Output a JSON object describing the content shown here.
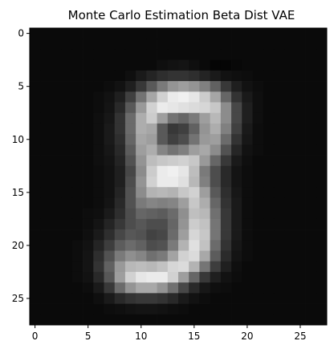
{
  "chart_data": {
    "type": "heatmap",
    "title": "Monte Carlo Estimation Beta Dist VAE",
    "xlabel": "",
    "ylabel": "",
    "colormap": "gray",
    "xlim": [
      -0.5,
      27.5
    ],
    "ylim": [
      27.5,
      -0.5
    ],
    "x_ticks": [
      0,
      5,
      10,
      15,
      20,
      25
    ],
    "y_ticks": [
      0,
      5,
      10,
      15,
      20,
      25
    ],
    "x_tick_labels": [
      "0",
      "5",
      "10",
      "15",
      "20",
      "25"
    ],
    "y_tick_labels": [
      "0",
      "5",
      "10",
      "15",
      "20",
      "25"
    ],
    "grid": false,
    "rows": 28,
    "cols": 28,
    "values": [
      [
        0.04,
        0.04,
        0.04,
        0.04,
        0.04,
        0.04,
        0.04,
        0.04,
        0.04,
        0.04,
        0.04,
        0.04,
        0.04,
        0.04,
        0.04,
        0.04,
        0.04,
        0.04,
        0.04,
        0.04,
        0.04,
        0.04,
        0.04,
        0.04,
        0.04,
        0.04,
        0.04,
        0.04
      ],
      [
        0.04,
        0.04,
        0.04,
        0.04,
        0.04,
        0.04,
        0.04,
        0.04,
        0.04,
        0.04,
        0.04,
        0.04,
        0.04,
        0.04,
        0.04,
        0.04,
        0.04,
        0.04,
        0.04,
        0.04,
        0.04,
        0.04,
        0.04,
        0.04,
        0.04,
        0.04,
        0.04,
        0.04
      ],
      [
        0.04,
        0.04,
        0.04,
        0.04,
        0.04,
        0.04,
        0.04,
        0.04,
        0.04,
        0.04,
        0.04,
        0.04,
        0.04,
        0.04,
        0.04,
        0.04,
        0.04,
        0.04,
        0.04,
        0.04,
        0.04,
        0.04,
        0.04,
        0.04,
        0.04,
        0.04,
        0.04,
        0.04
      ],
      [
        0.04,
        0.04,
        0.04,
        0.04,
        0.04,
        0.04,
        0.04,
        0.04,
        0.04,
        0.04,
        0.04,
        0.04,
        0.06,
        0.07,
        0.08,
        0.06,
        0.04,
        0.02,
        0.02,
        0.03,
        0.04,
        0.04,
        0.04,
        0.04,
        0.04,
        0.04,
        0.04,
        0.04
      ],
      [
        0.04,
        0.04,
        0.04,
        0.04,
        0.04,
        0.04,
        0.04,
        0.04,
        0.04,
        0.06,
        0.1,
        0.14,
        0.18,
        0.2,
        0.2,
        0.18,
        0.14,
        0.1,
        0.07,
        0.06,
        0.05,
        0.04,
        0.04,
        0.04,
        0.04,
        0.04,
        0.04,
        0.04
      ],
      [
        0.04,
        0.04,
        0.04,
        0.04,
        0.04,
        0.04,
        0.04,
        0.05,
        0.07,
        0.12,
        0.22,
        0.35,
        0.48,
        0.58,
        0.62,
        0.58,
        0.5,
        0.38,
        0.22,
        0.12,
        0.07,
        0.05,
        0.04,
        0.04,
        0.04,
        0.04,
        0.04,
        0.04
      ],
      [
        0.04,
        0.04,
        0.04,
        0.04,
        0.04,
        0.04,
        0.05,
        0.07,
        0.12,
        0.25,
        0.45,
        0.65,
        0.82,
        0.92,
        0.94,
        0.9,
        0.8,
        0.65,
        0.4,
        0.2,
        0.1,
        0.06,
        0.04,
        0.04,
        0.04,
        0.04,
        0.04,
        0.04
      ],
      [
        0.04,
        0.04,
        0.04,
        0.04,
        0.04,
        0.04,
        0.05,
        0.08,
        0.16,
        0.35,
        0.6,
        0.82,
        0.92,
        0.9,
        0.88,
        0.86,
        0.84,
        0.78,
        0.55,
        0.28,
        0.12,
        0.06,
        0.04,
        0.04,
        0.04,
        0.04,
        0.04,
        0.04
      ],
      [
        0.04,
        0.04,
        0.04,
        0.04,
        0.04,
        0.04,
        0.06,
        0.09,
        0.2,
        0.42,
        0.68,
        0.8,
        0.62,
        0.45,
        0.4,
        0.48,
        0.62,
        0.72,
        0.55,
        0.28,
        0.12,
        0.06,
        0.04,
        0.04,
        0.04,
        0.04,
        0.04,
        0.04
      ],
      [
        0.04,
        0.04,
        0.04,
        0.04,
        0.04,
        0.04,
        0.06,
        0.1,
        0.2,
        0.42,
        0.68,
        0.65,
        0.35,
        0.22,
        0.25,
        0.38,
        0.58,
        0.68,
        0.5,
        0.25,
        0.1,
        0.05,
        0.04,
        0.04,
        0.04,
        0.04,
        0.04,
        0.04
      ],
      [
        0.04,
        0.04,
        0.04,
        0.04,
        0.04,
        0.04,
        0.06,
        0.1,
        0.18,
        0.4,
        0.65,
        0.62,
        0.35,
        0.25,
        0.3,
        0.45,
        0.6,
        0.62,
        0.42,
        0.2,
        0.09,
        0.05,
        0.04,
        0.04,
        0.04,
        0.04,
        0.04,
        0.04
      ],
      [
        0.04,
        0.04,
        0.04,
        0.04,
        0.04,
        0.04,
        0.06,
        0.09,
        0.16,
        0.36,
        0.62,
        0.68,
        0.52,
        0.45,
        0.5,
        0.62,
        0.66,
        0.55,
        0.32,
        0.15,
        0.07,
        0.05,
        0.04,
        0.04,
        0.04,
        0.04,
        0.04,
        0.04
      ],
      [
        0.04,
        0.04,
        0.04,
        0.04,
        0.04,
        0.04,
        0.06,
        0.08,
        0.14,
        0.32,
        0.58,
        0.74,
        0.78,
        0.8,
        0.82,
        0.78,
        0.6,
        0.4,
        0.22,
        0.1,
        0.06,
        0.04,
        0.04,
        0.04,
        0.04,
        0.04,
        0.04,
        0.04
      ],
      [
        0.04,
        0.04,
        0.04,
        0.04,
        0.04,
        0.04,
        0.05,
        0.07,
        0.12,
        0.28,
        0.55,
        0.8,
        0.92,
        0.94,
        0.9,
        0.74,
        0.48,
        0.3,
        0.16,
        0.08,
        0.05,
        0.04,
        0.04,
        0.04,
        0.04,
        0.04,
        0.04,
        0.04
      ],
      [
        0.04,
        0.04,
        0.04,
        0.04,
        0.04,
        0.04,
        0.05,
        0.07,
        0.12,
        0.3,
        0.58,
        0.82,
        0.92,
        0.92,
        0.88,
        0.72,
        0.5,
        0.3,
        0.16,
        0.08,
        0.05,
        0.04,
        0.04,
        0.04,
        0.04,
        0.04,
        0.04,
        0.04
      ],
      [
        0.04,
        0.04,
        0.04,
        0.04,
        0.04,
        0.04,
        0.05,
        0.07,
        0.14,
        0.32,
        0.55,
        0.7,
        0.72,
        0.7,
        0.78,
        0.82,
        0.62,
        0.35,
        0.18,
        0.09,
        0.05,
        0.04,
        0.04,
        0.04,
        0.04,
        0.04,
        0.04,
        0.04
      ],
      [
        0.04,
        0.04,
        0.04,
        0.04,
        0.04,
        0.04,
        0.05,
        0.08,
        0.16,
        0.32,
        0.48,
        0.52,
        0.5,
        0.52,
        0.62,
        0.78,
        0.68,
        0.4,
        0.2,
        0.1,
        0.05,
        0.04,
        0.04,
        0.04,
        0.04,
        0.04,
        0.04,
        0.04
      ],
      [
        0.04,
        0.04,
        0.04,
        0.04,
        0.04,
        0.05,
        0.06,
        0.1,
        0.18,
        0.3,
        0.4,
        0.38,
        0.36,
        0.42,
        0.56,
        0.75,
        0.72,
        0.44,
        0.22,
        0.1,
        0.05,
        0.04,
        0.04,
        0.04,
        0.04,
        0.04,
        0.04,
        0.04
      ],
      [
        0.04,
        0.04,
        0.04,
        0.04,
        0.04,
        0.05,
        0.08,
        0.14,
        0.22,
        0.3,
        0.34,
        0.3,
        0.3,
        0.4,
        0.58,
        0.8,
        0.76,
        0.46,
        0.22,
        0.1,
        0.05,
        0.04,
        0.04,
        0.04,
        0.04,
        0.04,
        0.04,
        0.04
      ],
      [
        0.04,
        0.04,
        0.04,
        0.04,
        0.04,
        0.06,
        0.1,
        0.18,
        0.28,
        0.34,
        0.32,
        0.26,
        0.28,
        0.42,
        0.62,
        0.84,
        0.78,
        0.46,
        0.22,
        0.1,
        0.05,
        0.04,
        0.04,
        0.04,
        0.04,
        0.04,
        0.04,
        0.04
      ],
      [
        0.04,
        0.04,
        0.04,
        0.04,
        0.05,
        0.07,
        0.14,
        0.24,
        0.36,
        0.42,
        0.38,
        0.3,
        0.32,
        0.48,
        0.7,
        0.88,
        0.76,
        0.42,
        0.2,
        0.09,
        0.05,
        0.04,
        0.04,
        0.04,
        0.04,
        0.04,
        0.04,
        0.04
      ],
      [
        0.04,
        0.04,
        0.04,
        0.04,
        0.05,
        0.08,
        0.18,
        0.32,
        0.48,
        0.56,
        0.52,
        0.44,
        0.48,
        0.64,
        0.82,
        0.86,
        0.66,
        0.36,
        0.17,
        0.08,
        0.05,
        0.04,
        0.04,
        0.04,
        0.04,
        0.04,
        0.04,
        0.04
      ],
      [
        0.04,
        0.04,
        0.04,
        0.04,
        0.05,
        0.08,
        0.2,
        0.38,
        0.6,
        0.72,
        0.74,
        0.72,
        0.76,
        0.84,
        0.86,
        0.7,
        0.46,
        0.24,
        0.12,
        0.06,
        0.04,
        0.04,
        0.04,
        0.04,
        0.04,
        0.04,
        0.04,
        0.04
      ],
      [
        0.04,
        0.04,
        0.04,
        0.04,
        0.05,
        0.07,
        0.16,
        0.34,
        0.62,
        0.82,
        0.9,
        0.92,
        0.92,
        0.82,
        0.62,
        0.4,
        0.22,
        0.12,
        0.07,
        0.05,
        0.04,
        0.04,
        0.04,
        0.04,
        0.04,
        0.04,
        0.04,
        0.04
      ],
      [
        0.04,
        0.04,
        0.04,
        0.04,
        0.04,
        0.05,
        0.1,
        0.22,
        0.42,
        0.58,
        0.66,
        0.66,
        0.58,
        0.44,
        0.28,
        0.16,
        0.09,
        0.06,
        0.05,
        0.04,
        0.04,
        0.04,
        0.04,
        0.04,
        0.04,
        0.04,
        0.04,
        0.04
      ],
      [
        0.04,
        0.04,
        0.04,
        0.04,
        0.04,
        0.04,
        0.06,
        0.1,
        0.16,
        0.2,
        0.22,
        0.22,
        0.2,
        0.16,
        0.1,
        0.07,
        0.05,
        0.04,
        0.04,
        0.04,
        0.04,
        0.04,
        0.04,
        0.04,
        0.04,
        0.04,
        0.04,
        0.04
      ],
      [
        0.04,
        0.04,
        0.04,
        0.04,
        0.04,
        0.04,
        0.04,
        0.05,
        0.06,
        0.07,
        0.08,
        0.08,
        0.07,
        0.06,
        0.05,
        0.04,
        0.04,
        0.04,
        0.04,
        0.04,
        0.04,
        0.04,
        0.04,
        0.04,
        0.04,
        0.04,
        0.04,
        0.04
      ],
      [
        0.04,
        0.04,
        0.04,
        0.04,
        0.04,
        0.04,
        0.04,
        0.04,
        0.04,
        0.04,
        0.04,
        0.04,
        0.04,
        0.04,
        0.04,
        0.04,
        0.04,
        0.04,
        0.04,
        0.04,
        0.04,
        0.04,
        0.04,
        0.04,
        0.04,
        0.04,
        0.04,
        0.04
      ]
    ]
  }
}
